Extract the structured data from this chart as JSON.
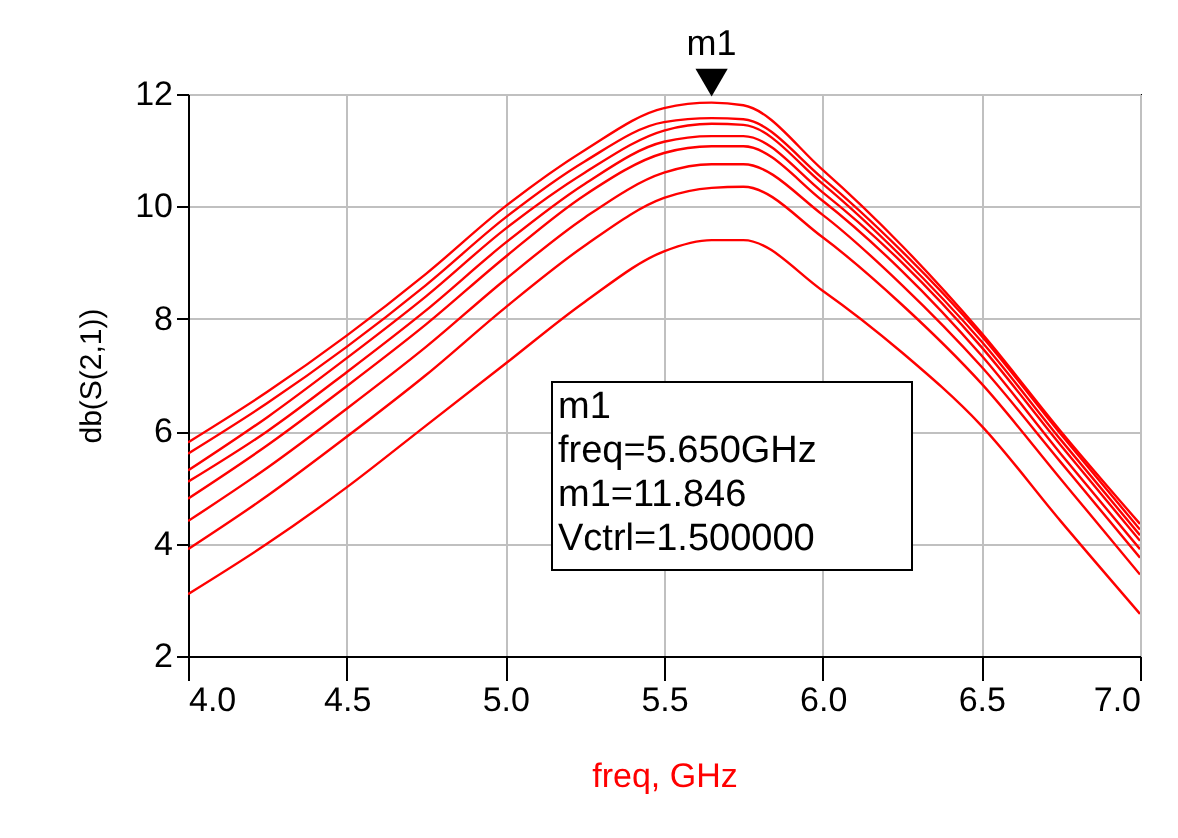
{
  "chart_data": {
    "type": "line",
    "xlabel": "freq, GHz",
    "ylabel": "db(S(2,1))",
    "x": [
      4.0,
      4.25,
      4.5,
      4.75,
      5.0,
      5.25,
      5.5,
      5.65,
      5.75,
      6.0,
      6.25,
      6.5,
      6.75,
      7.0
    ],
    "series": [
      {
        "color": "#ff0000",
        "values": [
          5.8,
          6.7,
          7.7,
          8.8,
          10.0,
          11.0,
          11.75,
          11.846,
          11.8,
          10.65,
          9.3,
          7.75,
          6.0,
          4.35
        ]
      },
      {
        "color": "#ff0000",
        "values": [
          5.6,
          6.5,
          7.5,
          8.6,
          9.8,
          10.8,
          11.5,
          11.57,
          11.55,
          10.5,
          9.2,
          7.7,
          5.95,
          4.25
        ]
      },
      {
        "color": "#ff0000",
        "values": [
          5.3,
          6.25,
          7.3,
          8.4,
          9.6,
          10.6,
          11.35,
          11.47,
          11.45,
          10.4,
          9.1,
          7.6,
          5.85,
          4.15
        ]
      },
      {
        "color": "#ff0000",
        "values": [
          5.1,
          6.0,
          7.05,
          8.15,
          9.35,
          10.4,
          11.15,
          11.25,
          11.25,
          10.25,
          9.0,
          7.5,
          5.75,
          4.05
        ]
      },
      {
        "color": "#ff0000",
        "values": [
          4.8,
          5.75,
          6.8,
          7.9,
          9.1,
          10.2,
          10.95,
          11.07,
          11.07,
          10.1,
          8.85,
          7.35,
          5.6,
          3.9
        ]
      },
      {
        "color": "#ff0000",
        "values": [
          4.4,
          5.35,
          6.4,
          7.5,
          8.7,
          9.8,
          10.6,
          10.75,
          10.75,
          9.85,
          8.6,
          7.15,
          5.45,
          3.75
        ]
      },
      {
        "color": "#ff0000",
        "values": [
          3.9,
          4.85,
          5.9,
          7.0,
          8.2,
          9.3,
          10.15,
          10.33,
          10.35,
          9.45,
          8.25,
          6.85,
          5.15,
          3.45
        ]
      },
      {
        "color": "#ff0000",
        "values": [
          3.1,
          4.0,
          5.0,
          6.1,
          7.2,
          8.3,
          9.2,
          9.4,
          9.4,
          8.5,
          7.4,
          6.1,
          4.4,
          2.75
        ]
      }
    ],
    "xlim": [
      4.0,
      7.0
    ],
    "xticks": [
      {
        "value": 4.0,
        "label": "4.0"
      },
      {
        "value": 4.5,
        "label": "4.5"
      },
      {
        "value": 5.0,
        "label": "5.0"
      },
      {
        "value": 5.5,
        "label": "5.5"
      },
      {
        "value": 6.0,
        "label": "6.0"
      },
      {
        "value": 6.5,
        "label": "6.5"
      },
      {
        "value": 7.0,
        "label": "7.0"
      }
    ],
    "ylim": [
      2,
      12
    ],
    "yticks": [
      2,
      4,
      6,
      8,
      10,
      12
    ],
    "grid": true,
    "marker": "none",
    "line_style": "solid",
    "annotations": [
      {
        "text": "m1",
        "x": 5.65,
        "y": 11.846
      },
      "m1",
      "freq=5.650GHz",
      "m1=11.846",
      "Vctrl=1.500000"
    ]
  }
}
